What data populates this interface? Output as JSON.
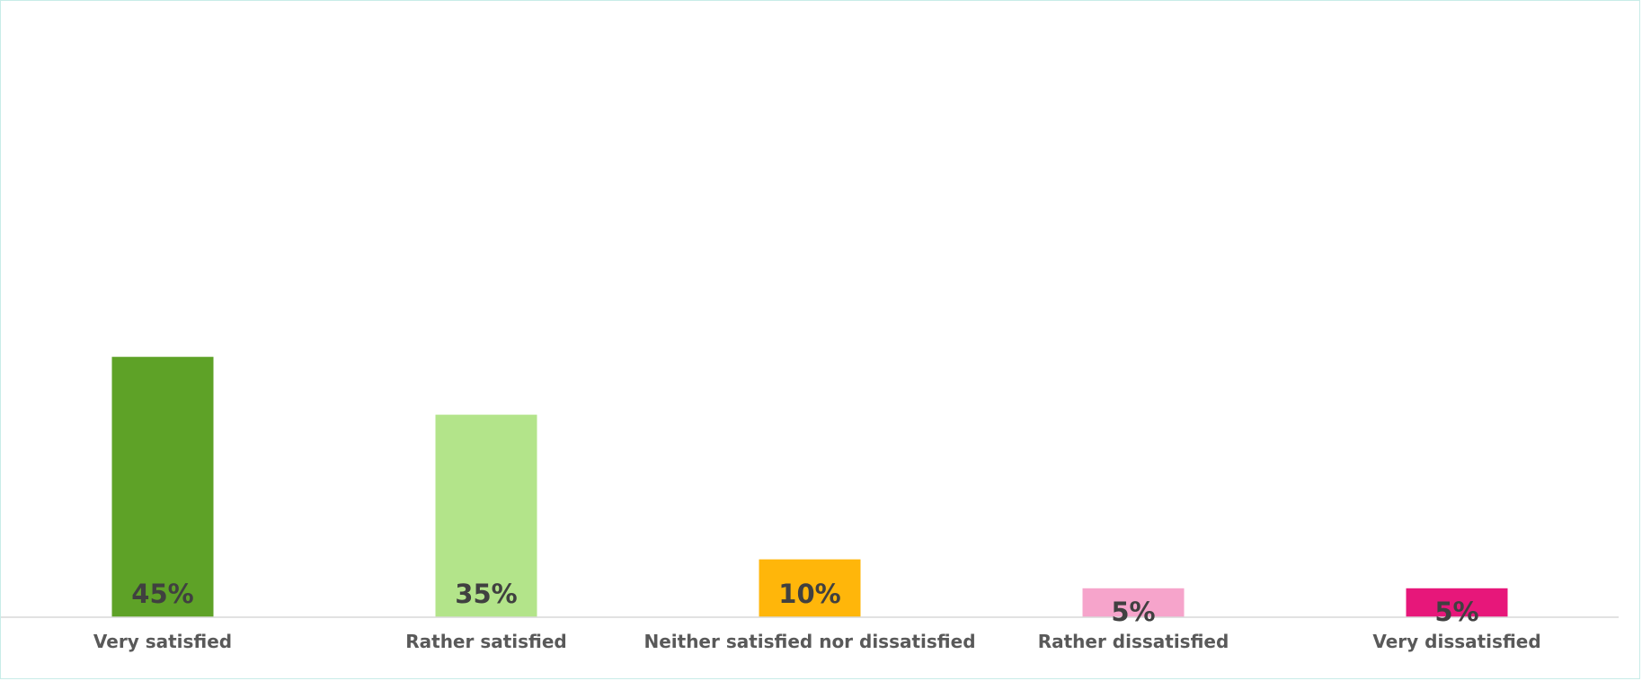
{
  "chart_data": {
    "type": "bar",
    "title": "",
    "xlabel": "",
    "ylabel": "",
    "categories": [
      "Very satisfied",
      "Rather satisfied",
      "Neither satisfied nor dissatisfied",
      "Rather dissatisfied",
      "Very dissatisfied"
    ],
    "values": [
      45,
      35,
      10,
      5,
      5
    ],
    "value_labels": [
      "45%",
      "35%",
      "10%",
      "5%",
      "5%"
    ],
    "colors": [
      "#5ea227",
      "#b3e48a",
      "#ffb60a",
      "#f6a4cb",
      "#e7177a"
    ],
    "ylim": [
      0,
      100
    ],
    "grid": false,
    "legend": "none"
  }
}
